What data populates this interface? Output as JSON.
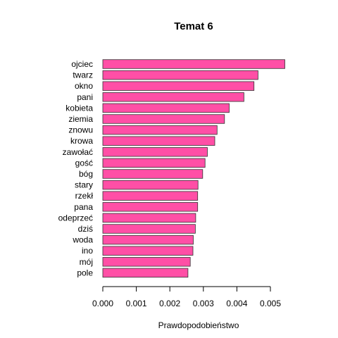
{
  "chart_data": {
    "type": "bar",
    "orientation": "horizontal",
    "title": "Temat 6",
    "xlabel": "Prawdopodobieństwo",
    "ylabel": "",
    "categories": [
      "ojciec",
      "twarz",
      "okno",
      "pani",
      "kobieta",
      "ziemia",
      "znowu",
      "krowa",
      "zawołać",
      "gość",
      "bóg",
      "stary",
      "rzekł",
      "pana",
      "odeprzeć",
      "dziś",
      "woda",
      "ino",
      "mój",
      "pole"
    ],
    "values": [
      0.00543,
      0.00463,
      0.00451,
      0.00421,
      0.00377,
      0.00363,
      0.00341,
      0.00334,
      0.00312,
      0.00305,
      0.00298,
      0.00284,
      0.00283,
      0.00283,
      0.00277,
      0.00276,
      0.0027,
      0.00269,
      0.00261,
      0.00254
    ],
    "xticks": [
      "0.000",
      "0.001",
      "0.002",
      "0.003",
      "0.004",
      "0.005"
    ],
    "xlim": [
      0,
      0.0055
    ],
    "bar_color": "#FF4FA6",
    "bar_stroke": "#333333",
    "grid": false,
    "legend": "none"
  }
}
